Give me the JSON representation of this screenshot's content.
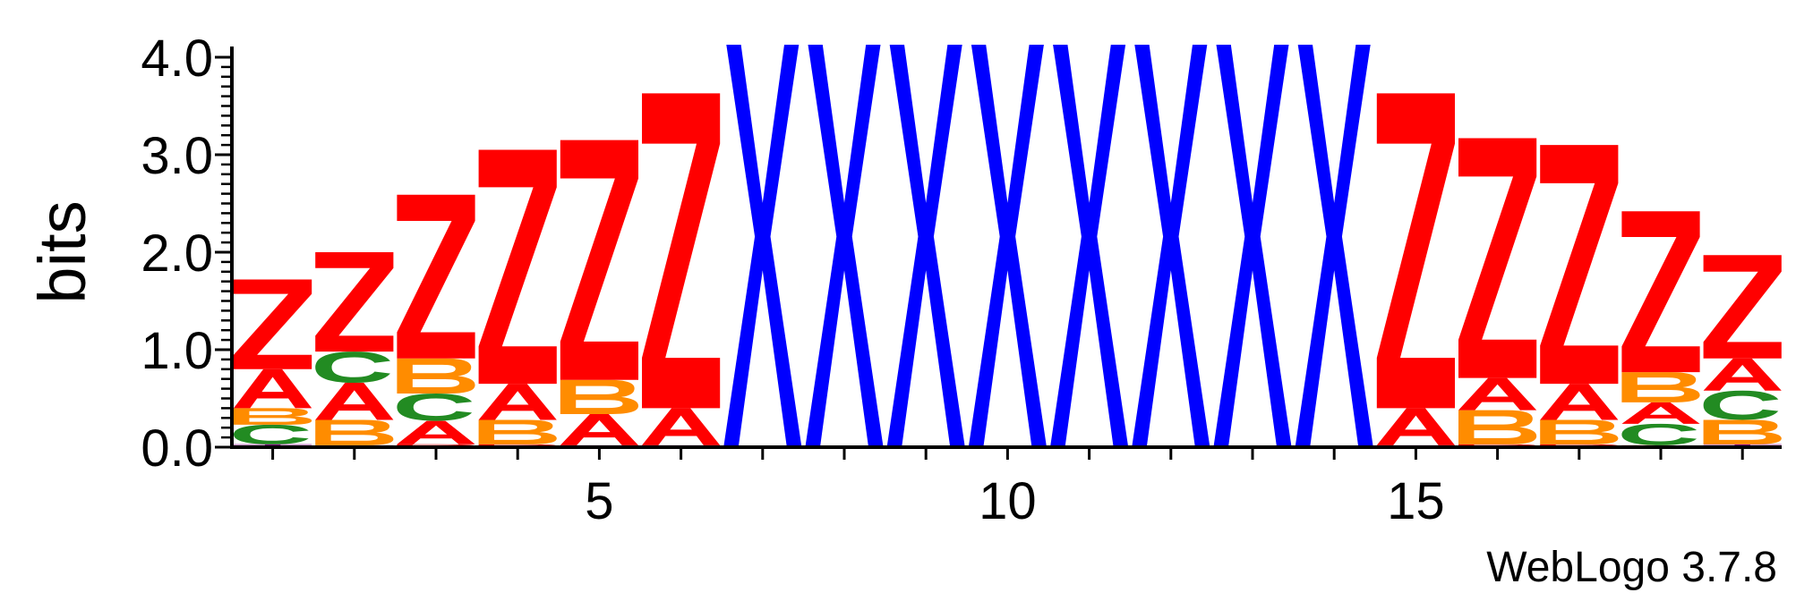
{
  "chart_data": {
    "type": "sequence-logo",
    "ylabel": "bits",
    "xlabel": "",
    "ylim": [
      0,
      4.0
    ],
    "y_ticks": [
      "0.0",
      "1.0",
      "2.0",
      "3.0",
      "4.0"
    ],
    "x_tick_labels": [
      "5",
      "10",
      "15"
    ],
    "x_tick_values": [
      5,
      10,
      15
    ],
    "positions": 19,
    "colors": {
      "Z": "#ff0000",
      "A": "#ff0000",
      "X": "#0000ff",
      "B": "#ff8c00",
      "C": "#228b22",
      "T": "#800080",
      "D": "#ff0000"
    },
    "stacks": [
      {
        "pos": 1,
        "letters": [
          [
            "T",
            0.03
          ],
          [
            "C",
            0.2
          ],
          [
            "B",
            0.17
          ],
          [
            "A",
            0.4
          ],
          [
            "Z",
            0.92
          ]
        ]
      },
      {
        "pos": 2,
        "letters": [
          [
            "T",
            0.02
          ],
          [
            "B",
            0.26
          ],
          [
            "A",
            0.38
          ],
          [
            "C",
            0.32
          ],
          [
            "Z",
            1.02
          ]
        ]
      },
      {
        "pos": 3,
        "letters": [
          [
            "D",
            0.03
          ],
          [
            "A",
            0.24
          ],
          [
            "C",
            0.28
          ],
          [
            "B",
            0.36
          ],
          [
            "Z",
            1.68
          ]
        ]
      },
      {
        "pos": 4,
        "letters": [
          [
            "D",
            0.03
          ],
          [
            "B",
            0.25
          ],
          [
            "A",
            0.37
          ],
          [
            "Z",
            2.4
          ]
        ]
      },
      {
        "pos": 5,
        "letters": [
          [
            "T",
            0.02
          ],
          [
            "A",
            0.32
          ],
          [
            "B",
            0.35
          ],
          [
            "Z",
            2.46
          ]
        ]
      },
      {
        "pos": 6,
        "letters": [
          [
            "T",
            0.02
          ],
          [
            "A",
            0.38
          ],
          [
            "Z",
            3.23
          ]
        ]
      },
      {
        "pos": 7,
        "letters": [
          [
            "X",
            4.32
          ]
        ]
      },
      {
        "pos": 8,
        "letters": [
          [
            "X",
            4.32
          ]
        ]
      },
      {
        "pos": 9,
        "letters": [
          [
            "X",
            4.32
          ]
        ]
      },
      {
        "pos": 10,
        "letters": [
          [
            "X",
            4.32
          ]
        ]
      },
      {
        "pos": 11,
        "letters": [
          [
            "X",
            4.32
          ]
        ]
      },
      {
        "pos": 12,
        "letters": [
          [
            "X",
            4.32
          ]
        ]
      },
      {
        "pos": 13,
        "letters": [
          [
            "X",
            4.32
          ]
        ]
      },
      {
        "pos": 14,
        "letters": [
          [
            "X",
            4.32
          ]
        ]
      },
      {
        "pos": 15,
        "letters": [
          [
            "T",
            0.02
          ],
          [
            "A",
            0.38
          ],
          [
            "Z",
            3.23
          ]
        ]
      },
      {
        "pos": 16,
        "letters": [
          [
            "D",
            0.03
          ],
          [
            "B",
            0.35
          ],
          [
            "A",
            0.33
          ],
          [
            "Z",
            2.46
          ]
        ]
      },
      {
        "pos": 17,
        "letters": [
          [
            "D",
            0.03
          ],
          [
            "B",
            0.25
          ],
          [
            "A",
            0.37
          ],
          [
            "Z",
            2.45
          ]
        ]
      },
      {
        "pos": 18,
        "letters": [
          [
            "D",
            0.02
          ],
          [
            "C",
            0.22
          ],
          [
            "A",
            0.22
          ],
          [
            "B",
            0.31
          ],
          [
            "Z",
            1.65
          ]
        ]
      },
      {
        "pos": 19,
        "letters": [
          [
            "T",
            0.03
          ],
          [
            "B",
            0.25
          ],
          [
            "C",
            0.3
          ],
          [
            "A",
            0.33
          ],
          [
            "Z",
            1.06
          ]
        ]
      }
    ]
  },
  "credit": "WebLogo 3.7.8"
}
